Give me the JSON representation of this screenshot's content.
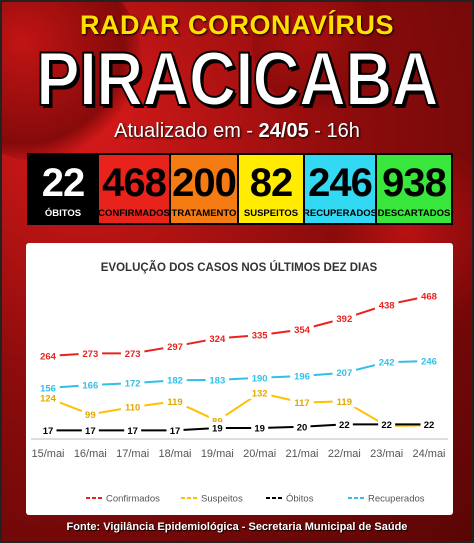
{
  "header": {
    "title": "RADAR CORONAVÍRUS",
    "city": "PIRACICABA",
    "updated_prefix": "Atualizado em - ",
    "updated_date": "24/05",
    "updated_suffix": " - 16h"
  },
  "stats": [
    {
      "value": "22",
      "label": "ÓBITOS",
      "bg": "#000000",
      "fg": "#ffffff",
      "label_fg": "#ffffff"
    },
    {
      "value": "468",
      "label": "CONFIRMADOS",
      "bg": "#e8231c",
      "fg": "#000000",
      "label_fg": "#000000"
    },
    {
      "value": "200",
      "label": "TRATAMENTO",
      "bg": "#f57c12",
      "fg": "#000000",
      "label_fg": "#000000"
    },
    {
      "value": "82",
      "label": "SUSPEITOS",
      "bg": "#ffec00",
      "fg": "#000000",
      "label_fg": "#000000"
    },
    {
      "value": "246",
      "label": "RECUPERADOS",
      "bg": "#33d8f2",
      "fg": "#000000",
      "label_fg": "#000000"
    },
    {
      "value": "938",
      "label": "DESCARTADOS",
      "bg": "#39e63b",
      "fg": "#000000",
      "label_fg": "#000000"
    }
  ],
  "chart_data": {
    "type": "line",
    "title": "EVOLUÇÃO DOS CASOS NOS ÚLTIMOS DEZ DIAS",
    "categories": [
      "15/mai",
      "16/mai",
      "17/mai",
      "18/mai",
      "19/mai",
      "20/mai",
      "21/mai",
      "22/mai",
      "23/mai",
      "24/mai"
    ],
    "series": [
      {
        "name": "Confirmados",
        "color": "#e8231c",
        "values": [
          264,
          273,
          273,
          297,
          324,
          335,
          354,
          392,
          438,
          468
        ]
      },
      {
        "name": "Suspeitos",
        "color": "#ffc000",
        "values": [
          124,
          99,
          110,
          119,
          89,
          132,
          117,
          119,
          81,
          82
        ]
      },
      {
        "name": "Óbitos",
        "color": "#000000",
        "values": [
          17,
          17,
          17,
          17,
          19,
          19,
          20,
          22,
          22,
          22
        ]
      },
      {
        "name": "Recuperados",
        "color": "#33c0e8",
        "values": [
          156,
          166,
          172,
          182,
          183,
          190,
          196,
          207,
          242,
          246
        ]
      }
    ],
    "legend": "bottom",
    "grid": false
  },
  "footer": {
    "source": "Fonte: Vigilância Epidemiológica - Secretaria Municipal de Saúde"
  }
}
